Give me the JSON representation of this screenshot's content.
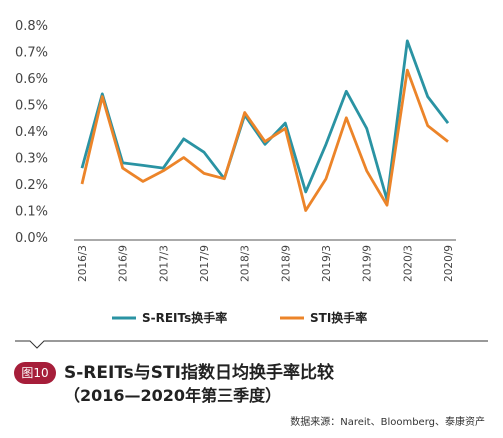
{
  "chart_data": {
    "type": "line",
    "categories": [
      "2016/3",
      "2016/6",
      "2016/9",
      "2016/12",
      "2017/3",
      "2017/6",
      "2017/9",
      "2017/12",
      "2018/3",
      "2018/6",
      "2018/9",
      "2018/12",
      "2019/3",
      "2019/6",
      "2019/9",
      "2019/12",
      "2020/3",
      "2020/6",
      "2020/9"
    ],
    "tick_labels": [
      "2016/3",
      "2016/9",
      "2017/3",
      "2017/9",
      "2018/3",
      "2018/9",
      "2019/3",
      "2019/9",
      "2020/3",
      "2020/9"
    ],
    "tick_every": 2,
    "y_ticks": [
      "0.0%",
      "0.1%",
      "0.2%",
      "0.3%",
      "0.4%",
      "0.5%",
      "0.6%",
      "0.7%",
      "0.8%"
    ],
    "ylim": [
      0,
      0.8
    ],
    "series": [
      {
        "name": "S-REITs换手率",
        "color": "#2a93a3",
        "values": [
          0.26,
          0.54,
          0.28,
          0.27,
          0.26,
          0.37,
          0.32,
          0.22,
          0.46,
          0.35,
          0.43,
          0.17,
          0.35,
          0.55,
          0.41,
          0.14,
          0.74,
          0.53,
          0.43
        ]
      },
      {
        "name": "STI换手率",
        "color": "#ec8429",
        "values": [
          0.2,
          0.53,
          0.26,
          0.21,
          0.25,
          0.3,
          0.24,
          0.22,
          0.47,
          0.36,
          0.41,
          0.1,
          0.22,
          0.45,
          0.25,
          0.12,
          0.63,
          0.42,
          0.36
        ]
      }
    ]
  },
  "figure": {
    "badge": "图10",
    "title": "S-REITs与STI指数日均换手率比较",
    "subtitle": "（2016—2020年第三季度）",
    "source": "数据来源：Nareit、Bloomberg、泰康资产"
  }
}
